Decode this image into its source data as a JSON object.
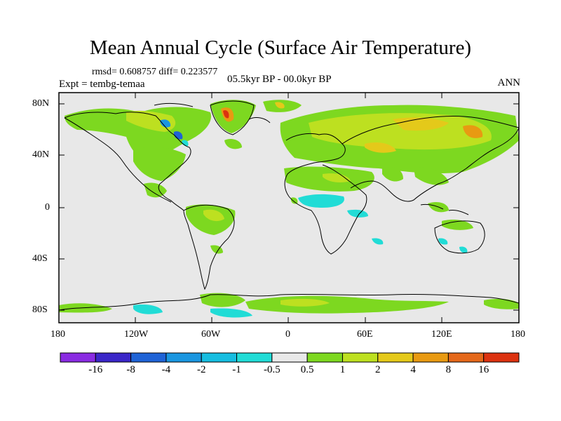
{
  "title": "Mean Annual Cycle (Surface Air Temperature)",
  "stats": "rmsd= 0.608757 diff= 0.223577",
  "experiment": "Expt = tembg-temaa",
  "period": "05.5kyr BP - 00.0kyr BP",
  "season": "ANN",
  "lat_ticks": [
    "80N",
    "40N",
    "0",
    "40S",
    "80S"
  ],
  "lon_ticks": [
    "180",
    "120W",
    "60W",
    "0",
    "60E",
    "120E",
    "180"
  ],
  "colorbar": {
    "labels": [
      "-16",
      "-8",
      "-4",
      "-2",
      "-1",
      "-0.5",
      "0.5",
      "1",
      "2",
      "4",
      "8",
      "16"
    ],
    "colors": [
      "#8a2be2",
      "#3a26c8",
      "#1f63d6",
      "#1a96e0",
      "#16bde0",
      "#21dcd6",
      "#e8e8e8",
      "#7dd820",
      "#bde020",
      "#e4c91a",
      "#e89a12",
      "#e4681a",
      "#dc3210"
    ]
  }
}
